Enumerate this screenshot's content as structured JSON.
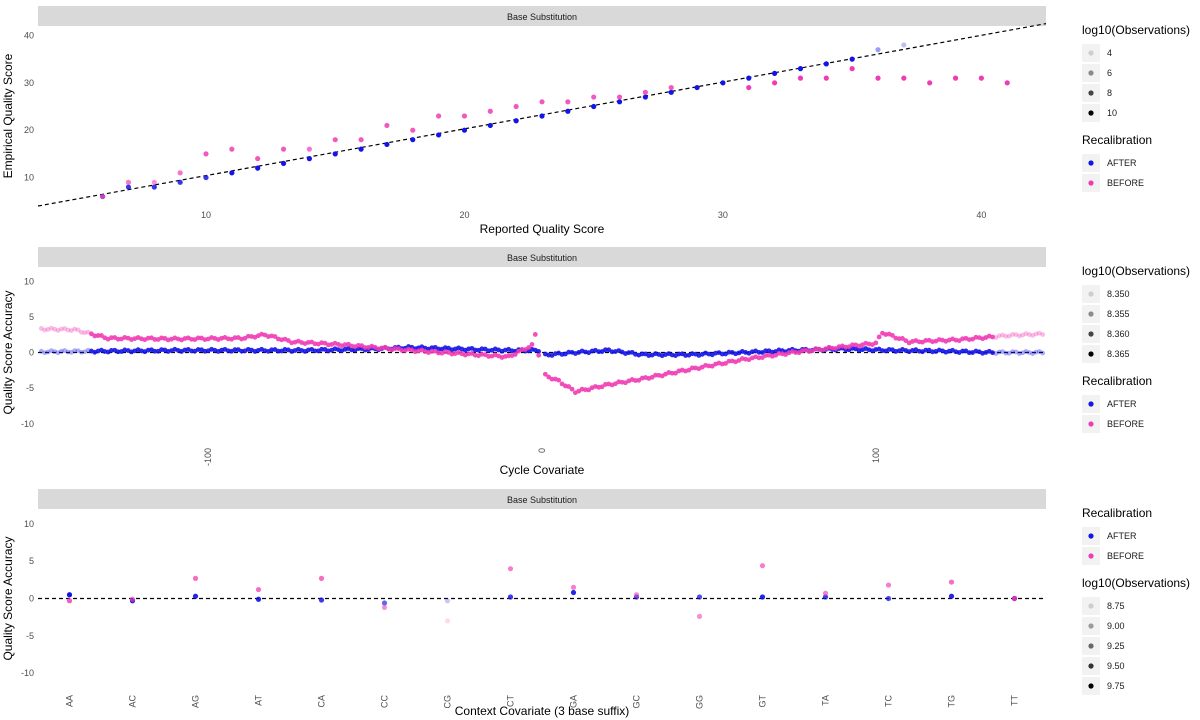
{
  "colors": {
    "after": "#1414e6",
    "before": "#f03cb4",
    "strip": "#d9d9d9",
    "legend_key_bg": "#f2f2f2"
  },
  "chart_data": [
    {
      "type": "scatter",
      "strip": "Base Substitution",
      "xlabel": "Reported Quality Score",
      "ylabel": "Empirical Quality Score",
      "xlim": [
        3.5,
        42.5
      ],
      "ylim": [
        4,
        42
      ],
      "xticks": [
        10,
        20,
        30,
        40
      ],
      "yticks": [
        10,
        20,
        30,
        40
      ],
      "reference_line": "y = x (dashed)",
      "grid": false,
      "legends": [
        {
          "title": "log10(Observations)",
          "labels": [
            "4",
            "6",
            "8",
            "10"
          ]
        },
        {
          "title": "Recalibration",
          "labels": [
            "AFTER",
            "BEFORE"
          ]
        }
      ],
      "series": [
        {
          "name": "AFTER",
          "x": [
            6,
            7,
            8,
            9,
            10,
            11,
            12,
            13,
            14,
            15,
            16,
            17,
            18,
            19,
            20,
            21,
            22,
            23,
            24,
            25,
            26,
            27,
            28,
            29,
            30,
            31,
            32,
            33,
            34,
            35,
            36,
            37
          ],
          "y": [
            6,
            8,
            8,
            9,
            10,
            11,
            12,
            13,
            14,
            15,
            16,
            17,
            18,
            19,
            20,
            21,
            22,
            23,
            24,
            25,
            26,
            27,
            28,
            29,
            30,
            31,
            32,
            33,
            34,
            35,
            37,
            38
          ],
          "log10_obs": [
            7,
            8,
            8,
            8,
            8,
            9,
            9,
            9,
            9,
            9,
            9,
            9,
            9,
            9,
            9,
            9,
            9,
            9,
            9,
            9,
            9,
            9,
            9,
            9,
            9,
            9,
            9,
            9,
            9,
            9,
            5,
            4
          ]
        },
        {
          "name": "BEFORE",
          "x": [
            6,
            7,
            8,
            9,
            10,
            11,
            12,
            13,
            14,
            15,
            16,
            17,
            18,
            19,
            20,
            21,
            22,
            23,
            24,
            25,
            26,
            27,
            28,
            31,
            32,
            33,
            34,
            35,
            36,
            37,
            38,
            39,
            40,
            41
          ],
          "y": [
            6,
            9,
            9,
            11,
            15,
            16,
            14,
            16,
            16,
            18,
            18,
            21,
            20,
            23,
            23,
            24,
            25,
            26,
            26,
            27,
            27,
            28,
            29,
            29,
            30,
            31,
            31,
            33,
            31,
            31,
            30,
            31,
            31,
            30
          ],
          "log10_obs": [
            7,
            7,
            6,
            7,
            8,
            8,
            8,
            8,
            7,
            8,
            8,
            8,
            8,
            8,
            8,
            8,
            8,
            8,
            8,
            8,
            8,
            8,
            8,
            9,
            9,
            9,
            9,
            9,
            9,
            9,
            9,
            9,
            9,
            9
          ]
        }
      ]
    },
    {
      "type": "scatter",
      "strip": "Base Substitution",
      "xlabel": "Cycle Covariate",
      "ylabel": "Quality Score Accuracy",
      "xlim": [
        -151,
        151
      ],
      "ylim": [
        -12,
        12
      ],
      "xticks": [
        -100,
        0,
        100
      ],
      "yticks": [
        -10,
        -5,
        0,
        5,
        10
      ],
      "reference_line": "y = 0 (dashed)",
      "grid": false,
      "legends": [
        {
          "title": "log10(Observations)",
          "labels": [
            "8.350",
            "8.355",
            "8.360",
            "8.365"
          ]
        },
        {
          "title": "Recalibration",
          "labels": [
            "AFTER",
            "BEFORE"
          ]
        }
      ],
      "series": [
        {
          "name": "AFTER",
          "description_points": [
            [
              -150,
              0.1
            ],
            [
              -130,
              0.2
            ],
            [
              -110,
              0.3
            ],
            [
              -90,
              0.3
            ],
            [
              -70,
              0.3
            ],
            [
              -50,
              0.5
            ],
            [
              -40,
              0.7
            ],
            [
              -25,
              0.5
            ],
            [
              -10,
              0.3
            ],
            [
              0,
              0.3
            ],
            [
              -5,
              1.2
            ],
            [
              -3,
              2
            ],
            [
              0,
              -0.4
            ],
            [
              10,
              0
            ],
            [
              20,
              0.3
            ],
            [
              30,
              -0.3
            ],
            [
              45,
              -0.3
            ],
            [
              60,
              0
            ],
            [
              75,
              0.3
            ],
            [
              90,
              0.5
            ],
            [
              105,
              0.3
            ],
            [
              120,
              0.2
            ],
            [
              135,
              0
            ],
            [
              148,
              0
            ]
          ]
        },
        {
          "name": "BEFORE",
          "description_points": [
            [
              -150,
              3.3
            ],
            [
              -140,
              3.2
            ],
            [
              -130,
              2
            ],
            [
              -110,
              1.9
            ],
            [
              -90,
              2
            ],
            [
              -83,
              2.5
            ],
            [
              -75,
              1.5
            ],
            [
              -60,
              1.1
            ],
            [
              -45,
              0.5
            ],
            [
              -30,
              0
            ],
            [
              -20,
              -0.3
            ],
            [
              -10,
              -0.6
            ],
            [
              -3,
              1
            ],
            [
              -2,
              2.5
            ],
            [
              0,
              -3
            ],
            [
              5,
              -4
            ],
            [
              10,
              -5.5
            ],
            [
              20,
              -4.5
            ],
            [
              30,
              -3.7
            ],
            [
              45,
              -2.3
            ],
            [
              60,
              -1
            ],
            [
              75,
              0
            ],
            [
              90,
              0.8
            ],
            [
              100,
              1.3
            ],
            [
              102,
              2.8
            ],
            [
              110,
              1.5
            ],
            [
              125,
              1.8
            ],
            [
              140,
              2.4
            ],
            [
              150,
              2.6
            ]
          ]
        }
      ]
    },
    {
      "type": "scatter",
      "strip": "Base Substitution",
      "xlabel": "Context Covariate (3 base suffix)",
      "ylabel": "Quality Score Accuracy",
      "categories": [
        "AA",
        "AC",
        "AG",
        "AT",
        "CA",
        "CC",
        "CG",
        "CT",
        "GA",
        "GC",
        "GG",
        "GT",
        "TA",
        "TC",
        "TG",
        "TT"
      ],
      "ylim": [
        -12,
        12
      ],
      "yticks": [
        -10,
        -5,
        0,
        5,
        10
      ],
      "reference_line": "y = 0 (dashed)",
      "grid": false,
      "legends": [
        {
          "title": "Recalibration",
          "labels": [
            "AFTER",
            "BEFORE"
          ]
        },
        {
          "title": "log10(Observations)",
          "labels": [
            "8.75",
            "9.00",
            "9.25",
            "9.50",
            "9.75"
          ]
        }
      ],
      "series": [
        {
          "name": "AFTER",
          "values": [
            0.5,
            -0.3,
            0.3,
            -0.1,
            -0.2,
            -0.6,
            -0.3,
            0.2,
            0.8,
            0.2,
            0.2,
            0.2,
            0.2,
            0,
            0.3,
            0
          ],
          "log10_obs": [
            9.7,
            9.6,
            9.6,
            9.6,
            9.5,
            9.3,
            8.8,
            9.5,
            9.6,
            9.4,
            9.4,
            9.6,
            9.5,
            9.4,
            9.6,
            9.7
          ]
        },
        {
          "name": "BEFORE",
          "values": [
            -0.3,
            -0.1,
            2.7,
            1.2,
            2.7,
            -1.2,
            -3,
            4,
            1.5,
            0.5,
            -2.4,
            4.4,
            0.7,
            1.8,
            2.2,
            0
          ],
          "log10_obs": [
            9.5,
            9.3,
            9.4,
            9.4,
            9.4,
            9.2,
            8.75,
            9.3,
            9.3,
            9.2,
            9.2,
            9.3,
            9.3,
            9.3,
            9.4,
            9.5
          ]
        }
      ]
    }
  ]
}
